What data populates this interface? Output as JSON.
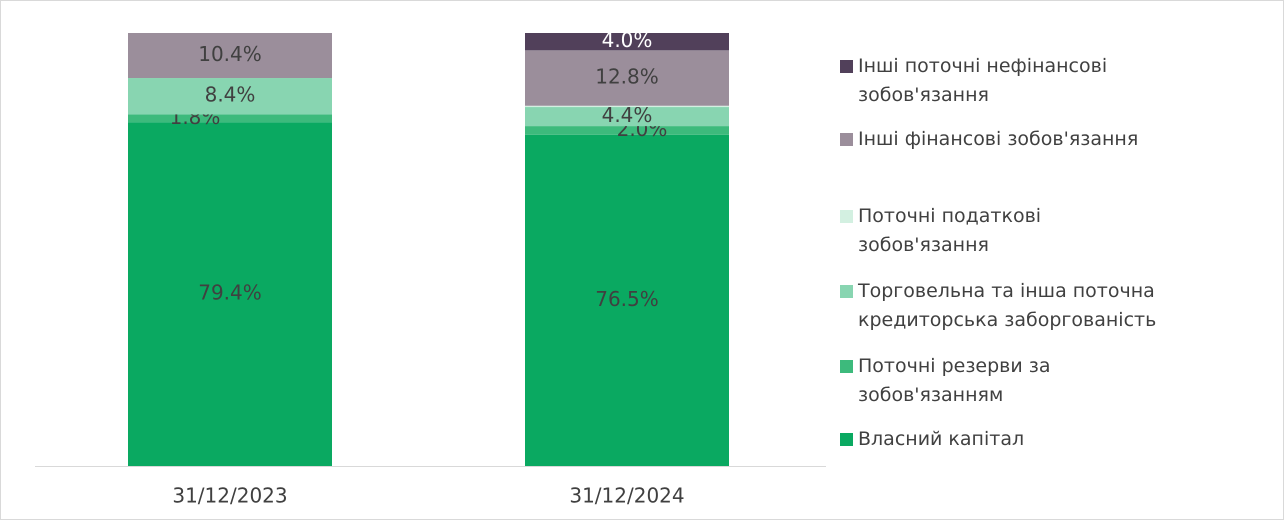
{
  "chart_data": {
    "type": "bar",
    "stacked": true,
    "categories": [
      "31/12/2023",
      "31/12/2024"
    ],
    "ylim": [
      0,
      100
    ],
    "series": [
      {
        "name": "Власний капітал",
        "color": "#0aa961",
        "values": [
          79.4,
          76.5
        ],
        "value_labels": [
          "79.4%",
          "76.5%"
        ]
      },
      {
        "name": "Поточні резерви за зобов'язанням",
        "color": "#3dba7c",
        "values": [
          1.8,
          2.0
        ],
        "value_labels": [
          "1.8%",
          "2.0%"
        ]
      },
      {
        "name": "Торговельна та інша поточна кредиторська заборгованість",
        "color": "#88d5b1",
        "values": [
          8.4,
          4.4
        ],
        "value_labels": [
          "8.4%",
          "4.4%"
        ]
      },
      {
        "name": "Поточні податкові зобов'язання",
        "color": "#d3f0e1",
        "values": [
          0.0,
          0.3
        ],
        "value_labels": [
          "0.0%",
          "0.3%"
        ]
      },
      {
        "name": "Інші фінансові зобов'язання",
        "color": "#9b8e9b",
        "values": [
          10.4,
          12.8
        ],
        "value_labels": [
          "10.4%",
          "12.8%"
        ]
      },
      {
        "name": "Інші поточні нефінансові зобов'язання",
        "color": "#51405a",
        "values": [
          0.0,
          4.0
        ],
        "value_labels": [
          null,
          "4.0%"
        ]
      }
    ]
  }
}
